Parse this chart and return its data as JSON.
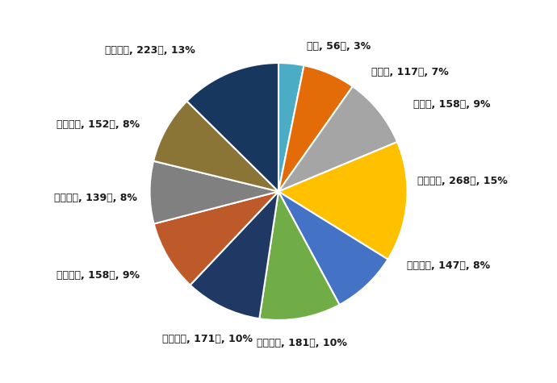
{
  "labels": [
    "０歳, 56人, 3%",
    "１歳～, 117人, 7%",
    "５歳～, 158人, 9%",
    "１０歳～, 268人, 15%",
    "２０歳～, 147人, 8%",
    "３０歳～, 181人, 10%",
    "４０歳～, 171人, 10%",
    "５０歳～, 158人, 9%",
    "６０歳～, 139人, 8%",
    "７０歳～, 152人, 8%",
    "８０歳～, 223人, 13%"
  ],
  "values": [
    56,
    117,
    158,
    268,
    147,
    181,
    171,
    158,
    139,
    152,
    223
  ],
  "colors": [
    "#4bacc6",
    "#e36c09",
    "#a5a5a5",
    "#ffc000",
    "#4472c4",
    "#70ad47",
    "#1f3864",
    "#be5a2a",
    "#808080",
    "#8b7536",
    "#17375e"
  ],
  "startangle": 90,
  "background_color": "#ffffff"
}
